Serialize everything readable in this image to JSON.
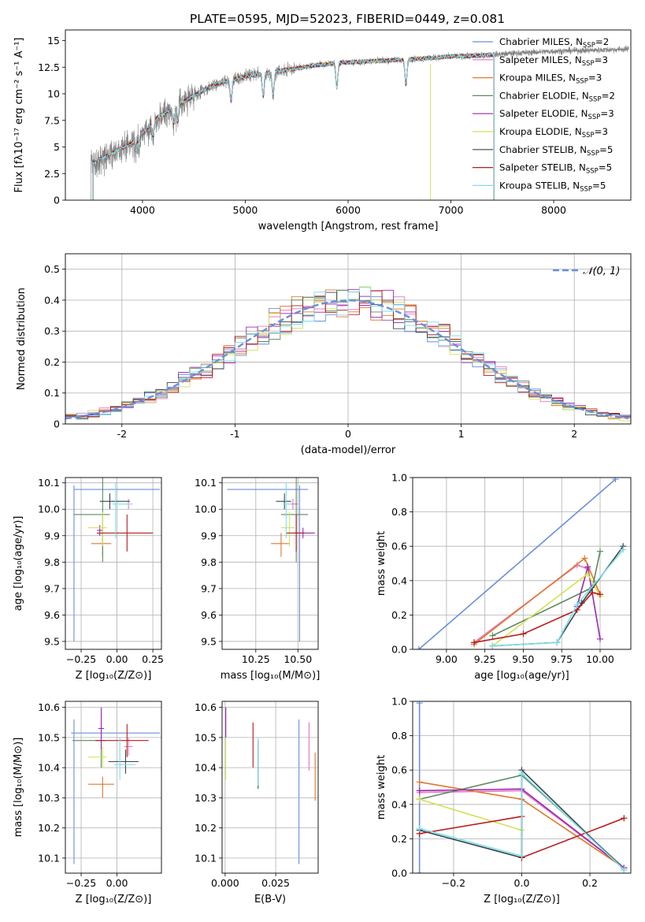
{
  "title": "PLATE=0595, MJD=52023, FIBERID=0449, z=0.081",
  "models": [
    {
      "name": "Chabrier MILES",
      "nssp": "2",
      "color": "#6a8fdc"
    },
    {
      "name": "Salpeter MILES",
      "nssp": "3",
      "color": "#e377c2"
    },
    {
      "name": "Kroupa MILES",
      "nssp": "3",
      "color": "#e0782c"
    },
    {
      "name": "Chabrier ELODIE",
      "nssp": "2",
      "color": "#5b8a5e"
    },
    {
      "name": "Salpeter ELODIE",
      "nssp": "3",
      "color": "#9c27b0"
    },
    {
      "name": "Kroupa ELODIE",
      "nssp": "3",
      "color": "#d4e157"
    },
    {
      "name": "Chabrier STELIB",
      "nssp": "5",
      "color": "#37474f"
    },
    {
      "name": "Salpeter STELIB",
      "nssp": "5",
      "color": "#b71c1c"
    },
    {
      "name": "Kroupa STELIB",
      "nssp": "5",
      "color": "#80deea"
    }
  ],
  "chart_data": [
    {
      "id": "spectrum",
      "type": "line",
      "xlabel": "wavelength [Angstrom, rest frame]",
      "ylabel": "Flux [fλ10⁻¹⁷ erg cm⁻² s⁻¹ A⁻¹]",
      "xlim": [
        3250,
        8750
      ],
      "ylim": [
        0,
        16
      ],
      "xticks": [
        4000,
        5000,
        6000,
        7000,
        8000
      ],
      "yticks": [
        0.0,
        2.5,
        5.0,
        7.5,
        10.0,
        12.5,
        15.0
      ],
      "data_color": "#808080",
      "data_x_range": [
        3500,
        8730
      ],
      "model_x_range": [
        3520,
        7420
      ],
      "continuum": [
        [
          3500,
          3.4
        ],
        [
          3700,
          4.4
        ],
        [
          3900,
          5.4
        ],
        [
          4000,
          6.3
        ],
        [
          4150,
          7.8
        ],
        [
          4300,
          8.7
        ],
        [
          4500,
          9.8
        ],
        [
          4700,
          10.9
        ],
        [
          4900,
          11.4
        ],
        [
          5100,
          11.8
        ],
        [
          5300,
          12.1
        ],
        [
          5500,
          12.4
        ],
        [
          5700,
          12.7
        ],
        [
          5900,
          12.9
        ],
        [
          6100,
          13.0
        ],
        [
          6300,
          13.1
        ],
        [
          6500,
          13.2
        ],
        [
          6700,
          13.3
        ],
        [
          7000,
          13.5
        ],
        [
          7300,
          13.6
        ],
        [
          7600,
          13.8
        ],
        [
          8000,
          14.0
        ],
        [
          8400,
          14.1
        ],
        [
          8730,
          14.2
        ]
      ]
    },
    {
      "id": "residuals",
      "type": "histogram",
      "xlabel": "(data-model)/error",
      "ylabel": "Normed distribution",
      "xlim": [
        -2.5,
        2.5
      ],
      "ylim": [
        0,
        0.55
      ],
      "xticks": [
        -2,
        -1,
        0,
        1,
        2
      ],
      "yticks": [
        0.0,
        0.1,
        0.2,
        0.3,
        0.4,
        0.5
      ],
      "bin_width": 0.1,
      "grid": true,
      "legend": {
        "label": "𝒩(0, 1)",
        "color": "#6a8fdc",
        "position": "upper right"
      }
    },
    {
      "id": "age-vs-Z",
      "type": "errorbar",
      "xlabel": "Z [log₁₀(Z/Z⊙)]",
      "ylabel": "age  [log₁₀(age/yr)]",
      "xlim": [
        -0.36,
        0.31
      ],
      "ylim": [
        9.47,
        10.12
      ],
      "xticks": [
        -0.25,
        0.0,
        0.25
      ],
      "xticklabels": [
        "−0.25",
        "0.00",
        "0.25"
      ],
      "yticks": [
        9.5,
        9.6,
        9.7,
        9.8,
        9.9,
        10.0,
        10.1
      ],
      "grid": true,
      "points": [
        {
          "model": 0,
          "x": -0.3,
          "xerr": [
            0,
            0.6
          ],
          "y": 10.075,
          "yerr": [
            0.575,
            0.015
          ]
        },
        {
          "model": 1,
          "x": 0.08,
          "xerr": [
            0.03,
            0.01
          ],
          "y": 10.02,
          "yerr": [
            0.02,
            0.02
          ]
        },
        {
          "model": 2,
          "x": -0.1,
          "xerr": [
            0.08,
            0.06
          ],
          "y": 9.87,
          "yerr": [
            0.05,
            0.04
          ]
        },
        {
          "model": 3,
          "x": -0.1,
          "xerr": [
            0.2,
            0.05
          ],
          "y": 9.98,
          "yerr": [
            0.18,
            0.14
          ]
        },
        {
          "model": 4,
          "x": -0.12,
          "xerr": [
            0.02,
            0.02
          ],
          "y": 9.92,
          "yerr": [
            0.02,
            0.02
          ]
        },
        {
          "model": 5,
          "x": -0.1,
          "xerr": [
            0.1,
            0.03
          ],
          "y": 9.93,
          "yerr": [
            0.07,
            0.06
          ]
        },
        {
          "model": 6,
          "x": -0.05,
          "xerr": [
            0.07,
            0.14
          ],
          "y": 10.03,
          "yerr": [
            0.03,
            0.03
          ]
        },
        {
          "model": 7,
          "x": 0.07,
          "xerr": [
            0.21,
            0.18
          ],
          "y": 9.91,
          "yerr": [
            0.07,
            0.07
          ]
        },
        {
          "model": 8,
          "x": -0.01,
          "xerr": [
            0.02,
            0.12
          ],
          "y": 10.02,
          "yerr": [
            0.13,
            0.08
          ]
        }
      ]
    },
    {
      "id": "age-vs-mass",
      "type": "errorbar",
      "xlabel": "mass [log₁₀(M/M⊙)]",
      "ylabel": "",
      "xlim": [
        10.05,
        10.62
      ],
      "ylim": [
        9.47,
        10.12
      ],
      "xticks": [
        10.25,
        10.5
      ],
      "xticklabels": [
        "10.25",
        "10.50"
      ],
      "yticks": [
        9.5,
        9.6,
        9.7,
        9.8,
        9.9,
        10.0,
        10.1
      ],
      "grid": true,
      "points": [
        {
          "model": 0,
          "x": 10.51,
          "xerr": [
            0.43,
            0.05
          ],
          "y": 10.075,
          "yerr": [
            0.575,
            0.015
          ]
        },
        {
          "model": 1,
          "x": 10.47,
          "xerr": [
            0.03,
            0.03
          ],
          "y": 10.02,
          "yerr": [
            0.02,
            0.02
          ]
        },
        {
          "model": 2,
          "x": 10.4,
          "xerr": [
            0.06,
            0.05
          ],
          "y": 9.87,
          "yerr": [
            0.05,
            0.04
          ]
        },
        {
          "model": 3,
          "x": 10.49,
          "xerr": [
            0.09,
            0.07
          ],
          "y": 9.98,
          "yerr": [
            0.18,
            0.14
          ]
        },
        {
          "model": 4,
          "x": 10.53,
          "xerr": [
            0.06,
            0.07
          ],
          "y": 9.91,
          "yerr": [
            0.02,
            0.02
          ]
        },
        {
          "model": 5,
          "x": 10.45,
          "xerr": [
            0.05,
            0.03
          ],
          "y": 9.93,
          "yerr": [
            0.07,
            0.06
          ]
        },
        {
          "model": 6,
          "x": 10.42,
          "xerr": [
            0.05,
            0.04
          ],
          "y": 10.03,
          "yerr": [
            0.03,
            0.03
          ]
        },
        {
          "model": 7,
          "x": 10.49,
          "xerr": [
            0.06,
            0.05
          ],
          "y": 9.91,
          "yerr": [
            0.07,
            0.07
          ]
        },
        {
          "model": 8,
          "x": 10.43,
          "xerr": [
            0.02,
            0.03
          ],
          "y": 10.02,
          "yerr": [
            0.13,
            0.08
          ]
        }
      ]
    },
    {
      "id": "weight-vs-age",
      "type": "line",
      "xlabel": "age  [log₁₀(age/yr)]",
      "ylabel": "mass weight",
      "xlim": [
        8.78,
        10.2
      ],
      "ylim": [
        0,
        1
      ],
      "xticks": [
        9.0,
        9.25,
        9.5,
        9.75,
        10.0
      ],
      "xticklabels": [
        "9.00",
        "9.25",
        "9.50",
        "9.75",
        "10.00"
      ],
      "yticks": [
        0.0,
        0.2,
        0.4,
        0.6,
        0.8,
        1.0
      ],
      "grid": true,
      "series": [
        {
          "model": 0,
          "x": [
            8.82,
            10.1
          ],
          "y": [
            0.0,
            0.99
          ]
        },
        {
          "model": 1,
          "x": [
            9.18,
            9.85,
            9.92
          ],
          "y": [
            0.04,
            0.49,
            0.47
          ]
        },
        {
          "model": 2,
          "x": [
            9.18,
            9.9,
            10.0
          ],
          "y": [
            0.03,
            0.53,
            0.32
          ]
        },
        {
          "model": 3,
          "x": [
            9.3,
            9.95,
            10.0
          ],
          "y": [
            0.08,
            0.36,
            0.57
          ]
        },
        {
          "model": 4,
          "x": [
            9.85,
            9.92,
            10.0
          ],
          "y": [
            0.25,
            0.48,
            0.06
          ]
        },
        {
          "model": 5,
          "x": [
            9.3,
            9.92,
            10.0
          ],
          "y": [
            0.02,
            0.44,
            0.31
          ]
        },
        {
          "model": 6,
          "x": [
            9.3,
            9.72,
            9.88,
            10.15
          ],
          "y": [
            0.02,
            0.04,
            0.27,
            0.6
          ]
        },
        {
          "model": 7,
          "x": [
            9.18,
            9.5,
            9.85,
            9.95,
            10.0
          ],
          "y": [
            0.04,
            0.09,
            0.23,
            0.33,
            0.32
          ]
        },
        {
          "model": 8,
          "x": [
            9.3,
            9.72,
            9.85,
            10.15
          ],
          "y": [
            0.02,
            0.04,
            0.26,
            0.58
          ]
        }
      ]
    },
    {
      "id": "mass-vs-Z",
      "type": "errorbar",
      "xlabel": "Z [log₁₀(Z/Z⊙)]",
      "ylabel": "mass [log₁₀(M/M⊙)]",
      "xlim": [
        -0.36,
        0.31
      ],
      "ylim": [
        10.05,
        10.62
      ],
      "xticks": [
        -0.25,
        0.0
      ],
      "xticklabels": [
        "−0.25",
        "0.00"
      ],
      "yticks": [
        10.1,
        10.2,
        10.3,
        10.4,
        10.5,
        10.6
      ],
      "grid": true,
      "points": [
        {
          "model": 0,
          "x": -0.3,
          "xerr": [
            0.02,
            0.6
          ],
          "y": 10.515,
          "yerr": [
            0.435,
            0.045
          ]
        },
        {
          "model": 1,
          "x": 0.08,
          "xerr": [
            0.03,
            0.03
          ],
          "y": 10.47,
          "yerr": [
            0.03,
            0.03
          ]
        },
        {
          "model": 2,
          "x": -0.1,
          "xerr": [
            0.1,
            0.08
          ],
          "y": 10.345,
          "yerr": [
            0.045,
            0.025
          ]
        },
        {
          "model": 3,
          "x": -0.11,
          "xerr": [
            0.2,
            0.03
          ],
          "y": 10.49,
          "yerr": [
            0.09,
            0.09
          ]
        },
        {
          "model": 4,
          "x": -0.11,
          "xerr": [
            0.02,
            0.02
          ],
          "y": 10.53,
          "yerr": [
            0.07,
            0.07
          ]
        },
        {
          "model": 5,
          "x": -0.1,
          "xerr": [
            0.1,
            0.03
          ],
          "y": 10.435,
          "yerr": [
            0.035,
            0.035
          ]
        },
        {
          "model": 6,
          "x": 0.06,
          "xerr": [
            0.12,
            0.09
          ],
          "y": 10.42,
          "yerr": [
            0.04,
            0.04
          ]
        },
        {
          "model": 7,
          "x": 0.07,
          "xerr": [
            0.22,
            0.15
          ],
          "y": 10.49,
          "yerr": [
            0.055,
            0.055
          ]
        },
        {
          "model": 8,
          "x": 0.02,
          "xerr": [
            0.04,
            0.11
          ],
          "y": 10.41,
          "yerr": [
            0.05,
            0.09
          ]
        }
      ]
    },
    {
      "id": "mass-vs-ebv",
      "type": "errorbar",
      "xlabel": "E(B-V)",
      "ylabel": "",
      "xlim": [
        -0.0015,
        0.046
      ],
      "ylim": [
        10.05,
        10.62
      ],
      "xticks": [
        0.0,
        0.025
      ],
      "xticklabels": [
        "0.000",
        "0.025"
      ],
      "yticks": [
        10.1,
        10.2,
        10.3,
        10.4,
        10.5,
        10.6
      ],
      "grid": true,
      "points": [
        {
          "model": 0,
          "x": 0.0365,
          "xerr": [
            0,
            0
          ],
          "y": 10.4,
          "yerr": [
            0.32,
            0.16
          ]
        },
        {
          "model": 1,
          "x": 0.0415,
          "xerr": [
            0,
            0
          ],
          "y": 10.47,
          "yerr": [
            0.08,
            0.08
          ]
        },
        {
          "model": 2,
          "x": 0.0445,
          "xerr": [
            0,
            0
          ],
          "y": 10.37,
          "yerr": [
            0.08,
            0.08
          ]
        },
        {
          "model": 3,
          "x": 0.0003,
          "xerr": [
            0,
            0
          ],
          "y": 10.56,
          "yerr": [
            0.06,
            0.04
          ]
        },
        {
          "model": 4,
          "x": 0.0003,
          "xerr": [
            0,
            0
          ],
          "y": 10.55,
          "yerr": [
            0.05,
            0.05
          ]
        },
        {
          "model": 5,
          "x": 0.0003,
          "xerr": [
            0,
            0
          ],
          "y": 10.44,
          "yerr": [
            0.08,
            0.06
          ]
        },
        {
          "model": 6,
          "x": 0.0163,
          "xerr": [
            0,
            0
          ],
          "y": 10.41,
          "yerr": [
            0.08,
            0.08
          ]
        },
        {
          "model": 7,
          "x": 0.0138,
          "xerr": [
            0,
            0
          ],
          "y": 10.47,
          "yerr": [
            0.07,
            0.08
          ]
        },
        {
          "model": 8,
          "x": 0.0163,
          "xerr": [
            0,
            0
          ],
          "y": 10.42,
          "yerr": [
            0.08,
            0.08
          ]
        }
      ]
    },
    {
      "id": "weight-vs-Z",
      "type": "line",
      "xlabel": "Z [log₁₀(Z/Z⊙)]",
      "ylabel": "mass weight",
      "xlim": [
        -0.32,
        0.32
      ],
      "ylim": [
        0,
        1
      ],
      "xticks": [
        -0.2,
        0.0,
        0.2
      ],
      "xticklabels": [
        "−0.2",
        "0.0",
        "0.2"
      ],
      "yticks": [
        0.0,
        0.2,
        0.4,
        0.6,
        0.8,
        1.0
      ],
      "grid": true,
      "series": [
        {
          "model": 0,
          "x": [
            -0.3,
            -0.3
          ],
          "y": [
            0.0,
            0.99
          ]
        },
        {
          "model": 1,
          "x": [
            -0.3,
            0.0,
            0.3
          ],
          "y": [
            0.47,
            0.48,
            0.03
          ]
        },
        {
          "model": 2,
          "x": [
            -0.3,
            0.0,
            0.3
          ],
          "y": [
            0.53,
            0.43,
            0.03
          ]
        },
        {
          "model": 3,
          "x": [
            -0.3,
            0.0,
            0.3
          ],
          "y": [
            0.43,
            0.57,
            0.03
          ]
        },
        {
          "model": 4,
          "x": [
            -0.3,
            0.0,
            0.3
          ],
          "y": [
            0.48,
            0.49,
            0.03
          ]
        },
        {
          "model": 5,
          "x": [
            -0.3,
            0.0
          ],
          "y": [
            0.43,
            0.25
          ]
        },
        {
          "model": 6,
          "x": [
            -0.3,
            0.0,
            0.0,
            0.3
          ],
          "y": [
            0.25,
            0.09,
            0.6,
            0.02
          ]
        },
        {
          "model": 7,
          "x": [
            -0.3,
            0.0,
            0.0,
            0.3
          ],
          "y": [
            0.23,
            0.33,
            0.09,
            0.32
          ]
        },
        {
          "model": 8,
          "x": [
            -0.3,
            0.0,
            0.0,
            0.3
          ],
          "y": [
            0.26,
            0.1,
            0.58,
            0.02
          ]
        }
      ]
    }
  ]
}
